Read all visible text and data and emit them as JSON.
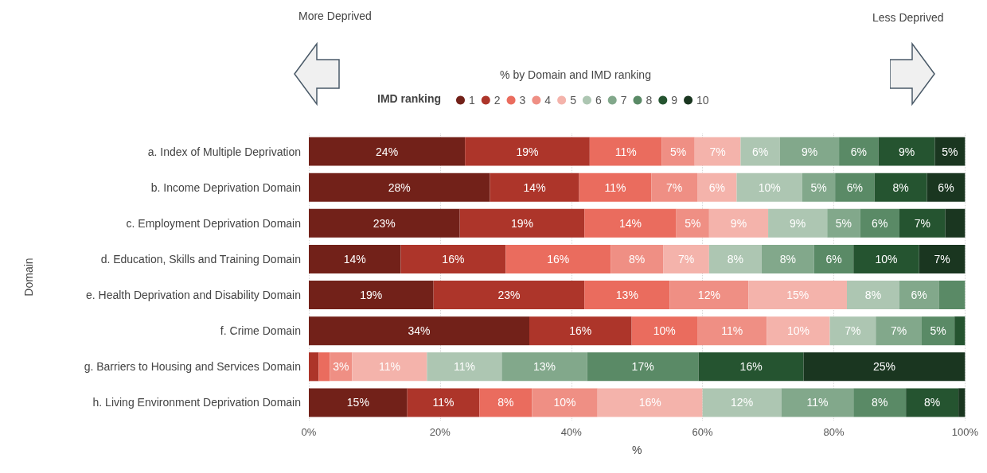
{
  "chart_data": {
    "type": "bar",
    "orientation": "horizontal",
    "stacked": true,
    "title": "% by Domain and IMD ranking",
    "legend_title": "IMD ranking",
    "xlabel": "%",
    "ylabel": "Domain",
    "annotations": [
      "More Deprived",
      "Less Deprived"
    ],
    "categories": [
      "a. Index of Multiple Deprivation",
      "b. Income Deprivation Domain",
      "c. Employment Deprivation Domain",
      "d. Education, Skills and Training Domain",
      "e. Health Deprivation and Disability Domain",
      "f. Crime Domain",
      "g. Barriers to Housing and Services Domain",
      "h. Living Environment Deprivation Domain"
    ],
    "xlim": [
      0,
      100
    ],
    "xticks": [
      {
        "value": 0,
        "label": "0%"
      },
      {
        "value": 20,
        "label": "20%"
      },
      {
        "value": 40,
        "label": "40%"
      },
      {
        "value": 60,
        "label": "60%"
      },
      {
        "value": 80,
        "label": "80%"
      },
      {
        "value": 100,
        "label": "100%"
      }
    ],
    "grid": "x",
    "legend": "top",
    "series": [
      {
        "name": "1",
        "color": "#722119",
        "values": [
          23.8,
          27.6,
          23,
          14,
          19,
          33.6,
          0,
          15
        ],
        "value_labels": [
          "24%",
          "28%",
          "23%",
          "14%",
          "19%",
          "34%",
          null,
          "15%"
        ]
      },
      {
        "name": "2",
        "color": "#ad352a",
        "values": [
          19,
          13.6,
          19,
          16,
          23,
          15.6,
          1.5,
          11
        ],
        "value_labels": [
          "19%",
          "14%",
          "19%",
          "16%",
          "23%",
          "16%",
          null,
          "11%"
        ]
      },
      {
        "name": "3",
        "color": "#ea6c5e",
        "values": [
          11,
          11,
          14,
          16,
          13,
          10,
          1.7,
          8
        ],
        "value_labels": [
          "11%",
          "11%",
          "14%",
          "16%",
          "13%",
          "10%",
          null,
          "8%"
        ]
      },
      {
        "name": "4",
        "color": "#ef8f84",
        "values": [
          5,
          7,
          5,
          8,
          12,
          10.6,
          3.4,
          10
        ],
        "value_labels": [
          "5%",
          "7%",
          "5%",
          "8%",
          "12%",
          "11%",
          "3%",
          "10%"
        ]
      },
      {
        "name": "5",
        "color": "#f4b3ab",
        "values": [
          7,
          6,
          9,
          7,
          15,
          9.6,
          11.4,
          16
        ],
        "value_labels": [
          "7%",
          "6%",
          "9%",
          "7%",
          "15%",
          "10%",
          "11%",
          "16%"
        ]
      },
      {
        "name": "6",
        "color": "#adc6b2",
        "values": [
          6,
          10,
          9,
          8,
          8,
          7,
          11.4,
          12
        ],
        "value_labels": [
          "6%",
          "10%",
          "9%",
          "8%",
          "8%",
          "7%",
          "11%",
          "12%"
        ]
      },
      {
        "name": "7",
        "color": "#82a88b",
        "values": [
          9,
          5,
          5,
          8,
          6,
          7,
          13,
          11
        ],
        "value_labels": [
          "9%",
          "5%",
          "5%",
          "8%",
          "6%",
          "7%",
          "13%",
          "11%"
        ]
      },
      {
        "name": "8",
        "color": "#5a8a66",
        "values": [
          6,
          6,
          6,
          6,
          4,
          5,
          17,
          8
        ],
        "value_labels": [
          "6%",
          "6%",
          "6%",
          "6%",
          null,
          "5%",
          "17%",
          "8%"
        ]
      },
      {
        "name": "9",
        "color": "#255430",
        "values": [
          8.6,
          8,
          7,
          10,
          0,
          1.6,
          16,
          8
        ],
        "value_labels": [
          "9%",
          "8%",
          "7%",
          "10%",
          null,
          null,
          "16%",
          "8%"
        ]
      },
      {
        "name": "10",
        "color": "#1a3620",
        "values": [
          4.6,
          5.8,
          3,
          7,
          0,
          0,
          24.6,
          1
        ],
        "value_labels": [
          "5%",
          "6%",
          null,
          "7%",
          null,
          null,
          "25%",
          null
        ]
      }
    ]
  }
}
